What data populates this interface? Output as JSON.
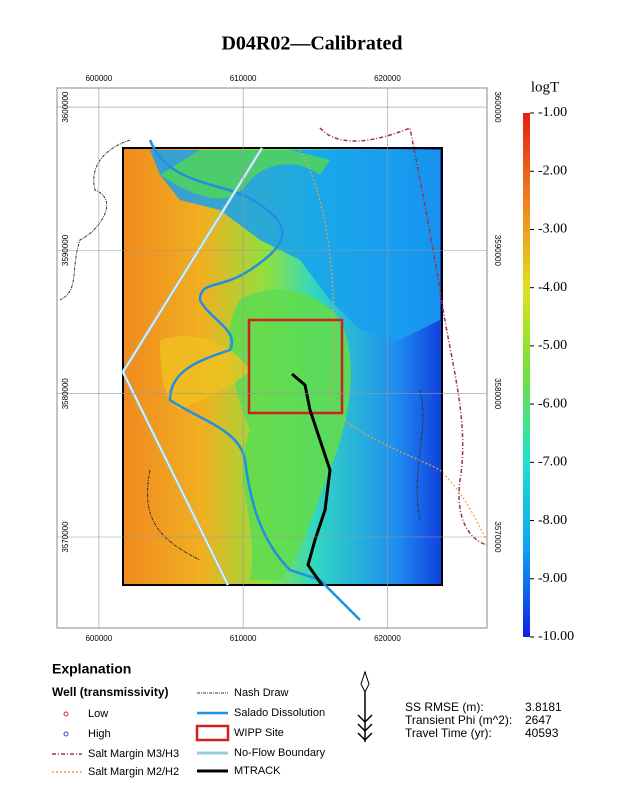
{
  "title": "D04R02—Calibrated",
  "map": {
    "xlim": [
      597100,
      626900
    ],
    "ylim": [
      3563650,
      3601330
    ],
    "xticks": [
      600000,
      610000,
      620000
    ],
    "yticks": [
      3570000,
      3580000,
      3590000,
      3600000
    ]
  },
  "colorbar": {
    "title": "logT",
    "clim": [
      -10,
      -1
    ],
    "colors": [
      "#1020e0",
      "#10a0f0",
      "#20e0d0",
      "#70e040",
      "#e0e020",
      "#f08020",
      "#e02010"
    ],
    "ticks": [
      {
        "value": -1,
        "label": "-1.00"
      },
      {
        "value": -2,
        "label": "-2.00"
      },
      {
        "value": -3,
        "label": "-3.00"
      },
      {
        "value": -4,
        "label": "-4.00"
      },
      {
        "value": -5,
        "label": "-5.00"
      },
      {
        "value": -6,
        "label": "-6.00"
      },
      {
        "value": -7,
        "label": "-7.00"
      },
      {
        "value": -8,
        "label": "-8.00"
      },
      {
        "value": -9,
        "label": "-9.00"
      },
      {
        "value": -10,
        "label": "-10.00"
      }
    ]
  },
  "legend": {
    "title": "Explanation",
    "subtitle": "Well (transmissivity)",
    "items": [
      "Low",
      "High",
      "Salt Margin M3/H3",
      "Salt Margin M2/H2",
      "Nash Draw",
      "Salado Dissolution",
      "WIPP Site",
      "No-Flow Boundary",
      "MTRACK"
    ]
  },
  "stats": [
    {
      "label": "SS RMSE (m):",
      "value": 3.8181
    },
    {
      "label": "Transient Phi (m^2):",
      "value": 2647
    },
    {
      "label": "Travel Time (yr):",
      "value": 40593
    }
  ]
}
